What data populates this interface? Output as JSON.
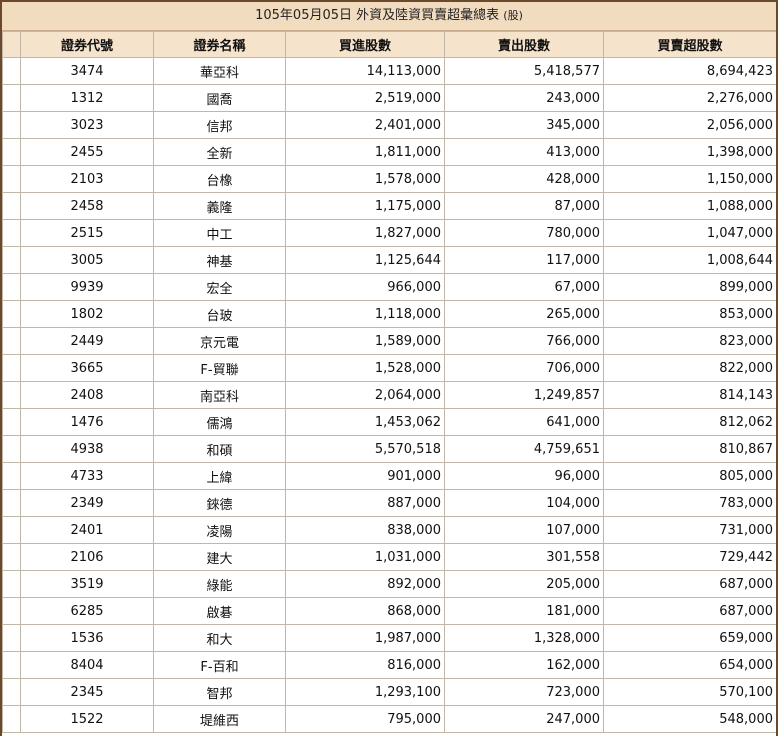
{
  "title": "105年05月05日 外資及陸資買賣超彙總表",
  "unit": "(股)",
  "headers": [
    "證券代號",
    "證券名稱",
    "買進股數",
    "賣出股數",
    "買賣超股數"
  ],
  "rows": [
    {
      "code": "3474",
      "name": "華亞科",
      "buy": "14,113,000",
      "sell": "5,418,577",
      "net": "8,694,423"
    },
    {
      "code": "1312",
      "name": "國喬",
      "buy": "2,519,000",
      "sell": "243,000",
      "net": "2,276,000"
    },
    {
      "code": "3023",
      "name": "信邦",
      "buy": "2,401,000",
      "sell": "345,000",
      "net": "2,056,000"
    },
    {
      "code": "2455",
      "name": "全新",
      "buy": "1,811,000",
      "sell": "413,000",
      "net": "1,398,000"
    },
    {
      "code": "2103",
      "name": "台橡",
      "buy": "1,578,000",
      "sell": "428,000",
      "net": "1,150,000"
    },
    {
      "code": "2458",
      "name": "義隆",
      "buy": "1,175,000",
      "sell": "87,000",
      "net": "1,088,000"
    },
    {
      "code": "2515",
      "name": "中工",
      "buy": "1,827,000",
      "sell": "780,000",
      "net": "1,047,000"
    },
    {
      "code": "3005",
      "name": "神基",
      "buy": "1,125,644",
      "sell": "117,000",
      "net": "1,008,644"
    },
    {
      "code": "9939",
      "name": "宏全",
      "buy": "966,000",
      "sell": "67,000",
      "net": "899,000"
    },
    {
      "code": "1802",
      "name": "台玻",
      "buy": "1,118,000",
      "sell": "265,000",
      "net": "853,000"
    },
    {
      "code": "2449",
      "name": "京元電",
      "buy": "1,589,000",
      "sell": "766,000",
      "net": "823,000"
    },
    {
      "code": "3665",
      "name": "F-貿聯",
      "buy": "1,528,000",
      "sell": "706,000",
      "net": "822,000"
    },
    {
      "code": "2408",
      "name": "南亞科",
      "buy": "2,064,000",
      "sell": "1,249,857",
      "net": "814,143"
    },
    {
      "code": "1476",
      "name": "儒鴻",
      "buy": "1,453,062",
      "sell": "641,000",
      "net": "812,062"
    },
    {
      "code": "4938",
      "name": "和碩",
      "buy": "5,570,518",
      "sell": "4,759,651",
      "net": "810,867"
    },
    {
      "code": "4733",
      "name": "上緯",
      "buy": "901,000",
      "sell": "96,000",
      "net": "805,000"
    },
    {
      "code": "2349",
      "name": "錸德",
      "buy": "887,000",
      "sell": "104,000",
      "net": "783,000"
    },
    {
      "code": "2401",
      "name": "凌陽",
      "buy": "838,000",
      "sell": "107,000",
      "net": "731,000"
    },
    {
      "code": "2106",
      "name": "建大",
      "buy": "1,031,000",
      "sell": "301,558",
      "net": "729,442"
    },
    {
      "code": "3519",
      "name": "綠能",
      "buy": "892,000",
      "sell": "205,000",
      "net": "687,000"
    },
    {
      "code": "6285",
      "name": "啟碁",
      "buy": "868,000",
      "sell": "181,000",
      "net": "687,000"
    },
    {
      "code": "1536",
      "name": "和大",
      "buy": "1,987,000",
      "sell": "1,328,000",
      "net": "659,000"
    },
    {
      "code": "8404",
      "name": "F-百和",
      "buy": "816,000",
      "sell": "162,000",
      "net": "654,000"
    },
    {
      "code": "2345",
      "name": "智邦",
      "buy": "1,293,100",
      "sell": "723,000",
      "net": "570,100"
    },
    {
      "code": "1522",
      "name": "堤維西",
      "buy": "795,000",
      "sell": "247,000",
      "net": "548,000"
    }
  ]
}
